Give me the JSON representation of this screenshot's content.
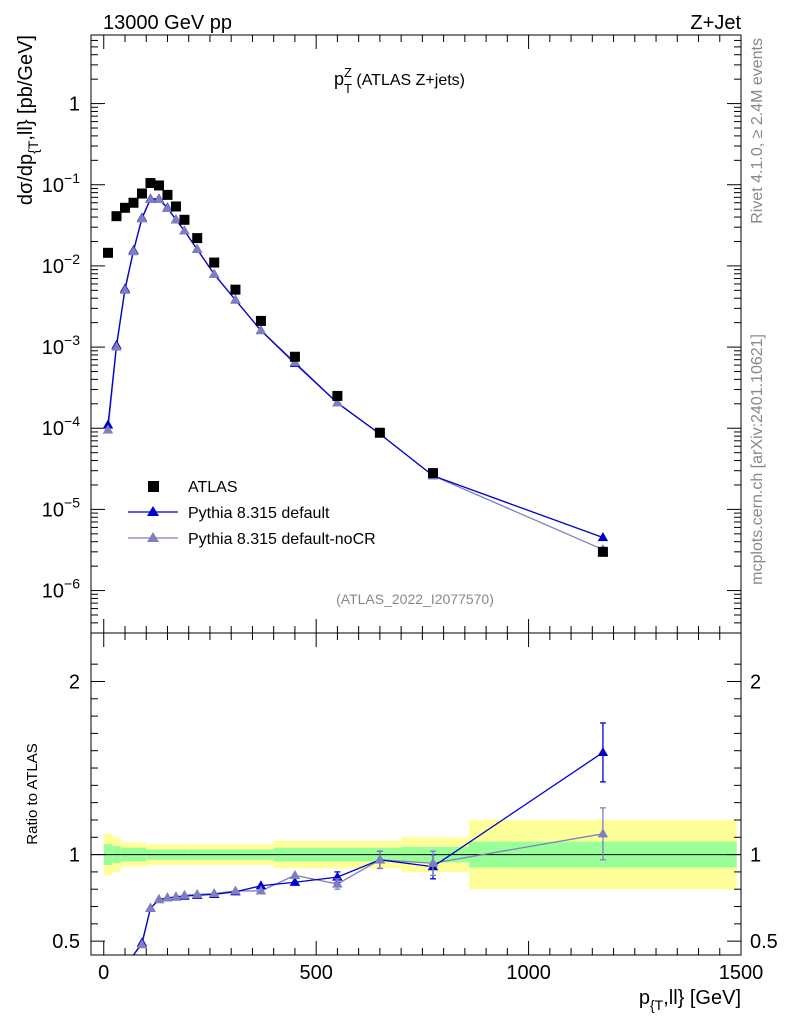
{
  "header": {
    "left": "13000 GeV pp",
    "right": "Z+Jet",
    "side_top": "Rivet 4.1.0, ≥ 2.4M events",
    "side_bottom": "mcplots.cern.ch [arXiv:2401.10621]"
  },
  "colors": {
    "data": "#000000",
    "default": "#0000cc",
    "nocr": "#7f7fbf",
    "band_inner": "#99ff99",
    "band_outer": "#ffff99"
  },
  "chart_data": [
    {
      "type": "scatter",
      "panel": "main",
      "title": "p_T^Z (ATLAS Z+jets)",
      "title_main": "p",
      "title_sub": "T",
      "title_sup": "Z",
      "title_rest": " (ATLAS Z+jets)",
      "analysis_label": "(ATLAS_2022_I2077570)",
      "ylabel": "dσ/dp_{T},ll} [pb/GeV]",
      "ylabel_parts": [
        "dσ/dp",
        "{T",
        ",ll} [pb/GeV]"
      ],
      "yscale": "log",
      "xlim": [
        -30,
        1500
      ],
      "ylim": [
        3e-07,
        7
      ],
      "y_ticks": [
        {
          "value": 1e-06,
          "base": "10",
          "exp": "−6"
        },
        {
          "value": 1e-05,
          "base": "10",
          "exp": "−5"
        },
        {
          "value": 0.0001,
          "base": "10",
          "exp": "−4"
        },
        {
          "value": 0.001,
          "base": "10",
          "exp": "−3"
        },
        {
          "value": 0.01,
          "base": "10",
          "exp": "−2"
        },
        {
          "value": 0.1,
          "base": "10",
          "exp": "−1"
        },
        {
          "value": 1,
          "base": "1",
          "exp": ""
        }
      ],
      "legend": [
        "ATLAS",
        "Pythia 8.315 default",
        "Pythia 8.315 default-noCR"
      ],
      "legend_position": "lower-left",
      "x": [
        10,
        30,
        50,
        70,
        90,
        110,
        130,
        150,
        170,
        190,
        220,
        260,
        310,
        370,
        450,
        550,
        650,
        775,
        1175
      ],
      "series": [
        {
          "name": "ATLAS",
          "values": [
            0.0145,
            0.041,
            0.052,
            0.06,
            0.078,
            0.105,
            0.098,
            0.075,
            0.054,
            0.037,
            0.022,
            0.011,
            0.0051,
            0.0021,
            0.00076,
            0.00025,
            8.8e-05,
            2.8e-05,
            3e-06
          ]
        },
        {
          "name": "Pythia 8.315 default",
          "values": [
            0.00011,
            0.00105,
            0.0052,
            0.0155,
            0.039,
            0.067,
            0.067,
            0.052,
            0.037,
            0.027,
            0.016,
            0.0079,
            0.0038,
            0.0016,
            0.00063,
            0.000205,
            8.5e-05,
            2.6e-05,
            4.5e-06
          ]
        },
        {
          "name": "Pythia 8.315 default-noCR",
          "values": [
            9.5e-05,
            0.001,
            0.005,
            0.015,
            0.038,
            0.066,
            0.066,
            0.051,
            0.037,
            0.027,
            0.016,
            0.0079,
            0.0038,
            0.0016,
            0.00065,
            0.000205,
            8.5e-05,
            2.6e-05,
            3.2e-06
          ]
        }
      ]
    },
    {
      "type": "line",
      "panel": "ratio",
      "ylabel": "Ratio to ATLAS",
      "xlabel": "p_{T},ll} [GeV]",
      "xlabel_parts": [
        "p",
        "{T",
        ",ll} [GeV]"
      ],
      "xlim": [
        -30,
        1500
      ],
      "ylim": [
        0.42,
        2.28
      ],
      "x_ticks": [
        0,
        500,
        1000,
        1500
      ],
      "y_ticks": [
        0.5,
        1,
        2
      ],
      "y_tick_labels": [
        "0.5",
        "1",
        "2"
      ],
      "x": [
        90,
        110,
        130,
        150,
        170,
        190,
        220,
        260,
        310,
        370,
        450,
        550,
        650,
        775,
        1175
      ],
      "series": [
        {
          "name": "Pythia 8.315 default",
          "values": [
            0.49,
            0.69,
            0.74,
            0.75,
            0.755,
            0.76,
            0.765,
            0.77,
            0.785,
            0.82,
            0.84,
            0.87,
            0.97,
            0.93,
            1.59
          ],
          "errors": [
            0.01,
            0.01,
            0.01,
            0.01,
            0.01,
            0.01,
            0.01,
            0.01,
            0.01,
            0.015,
            0.02,
            0.03,
            0.05,
            0.07,
            0.17
          ]
        },
        {
          "name": "Pythia 8.315 default-noCR",
          "values": [
            0.48,
            0.69,
            0.74,
            0.75,
            0.755,
            0.765,
            0.77,
            0.775,
            0.79,
            0.79,
            0.88,
            0.83,
            0.97,
            0.95,
            1.12
          ],
          "errors": [
            0.01,
            0.01,
            0.01,
            0.01,
            0.01,
            0.01,
            0.01,
            0.01,
            0.01,
            0.015,
            0.02,
            0.03,
            0.05,
            0.07,
            0.15
          ]
        }
      ],
      "offscale_segment": {
        "from": 70,
        "to": 90
      },
      "bands": {
        "edges": [
          0,
          20,
          40,
          100,
          200,
          400,
          700,
          860,
          1490
        ],
        "inner": [
          0.06,
          0.05,
          0.04,
          0.03,
          0.03,
          0.04,
          0.045,
          0.075
        ],
        "outer": [
          0.12,
          0.1,
          0.07,
          0.06,
          0.06,
          0.08,
          0.1,
          0.2
        ]
      }
    }
  ]
}
